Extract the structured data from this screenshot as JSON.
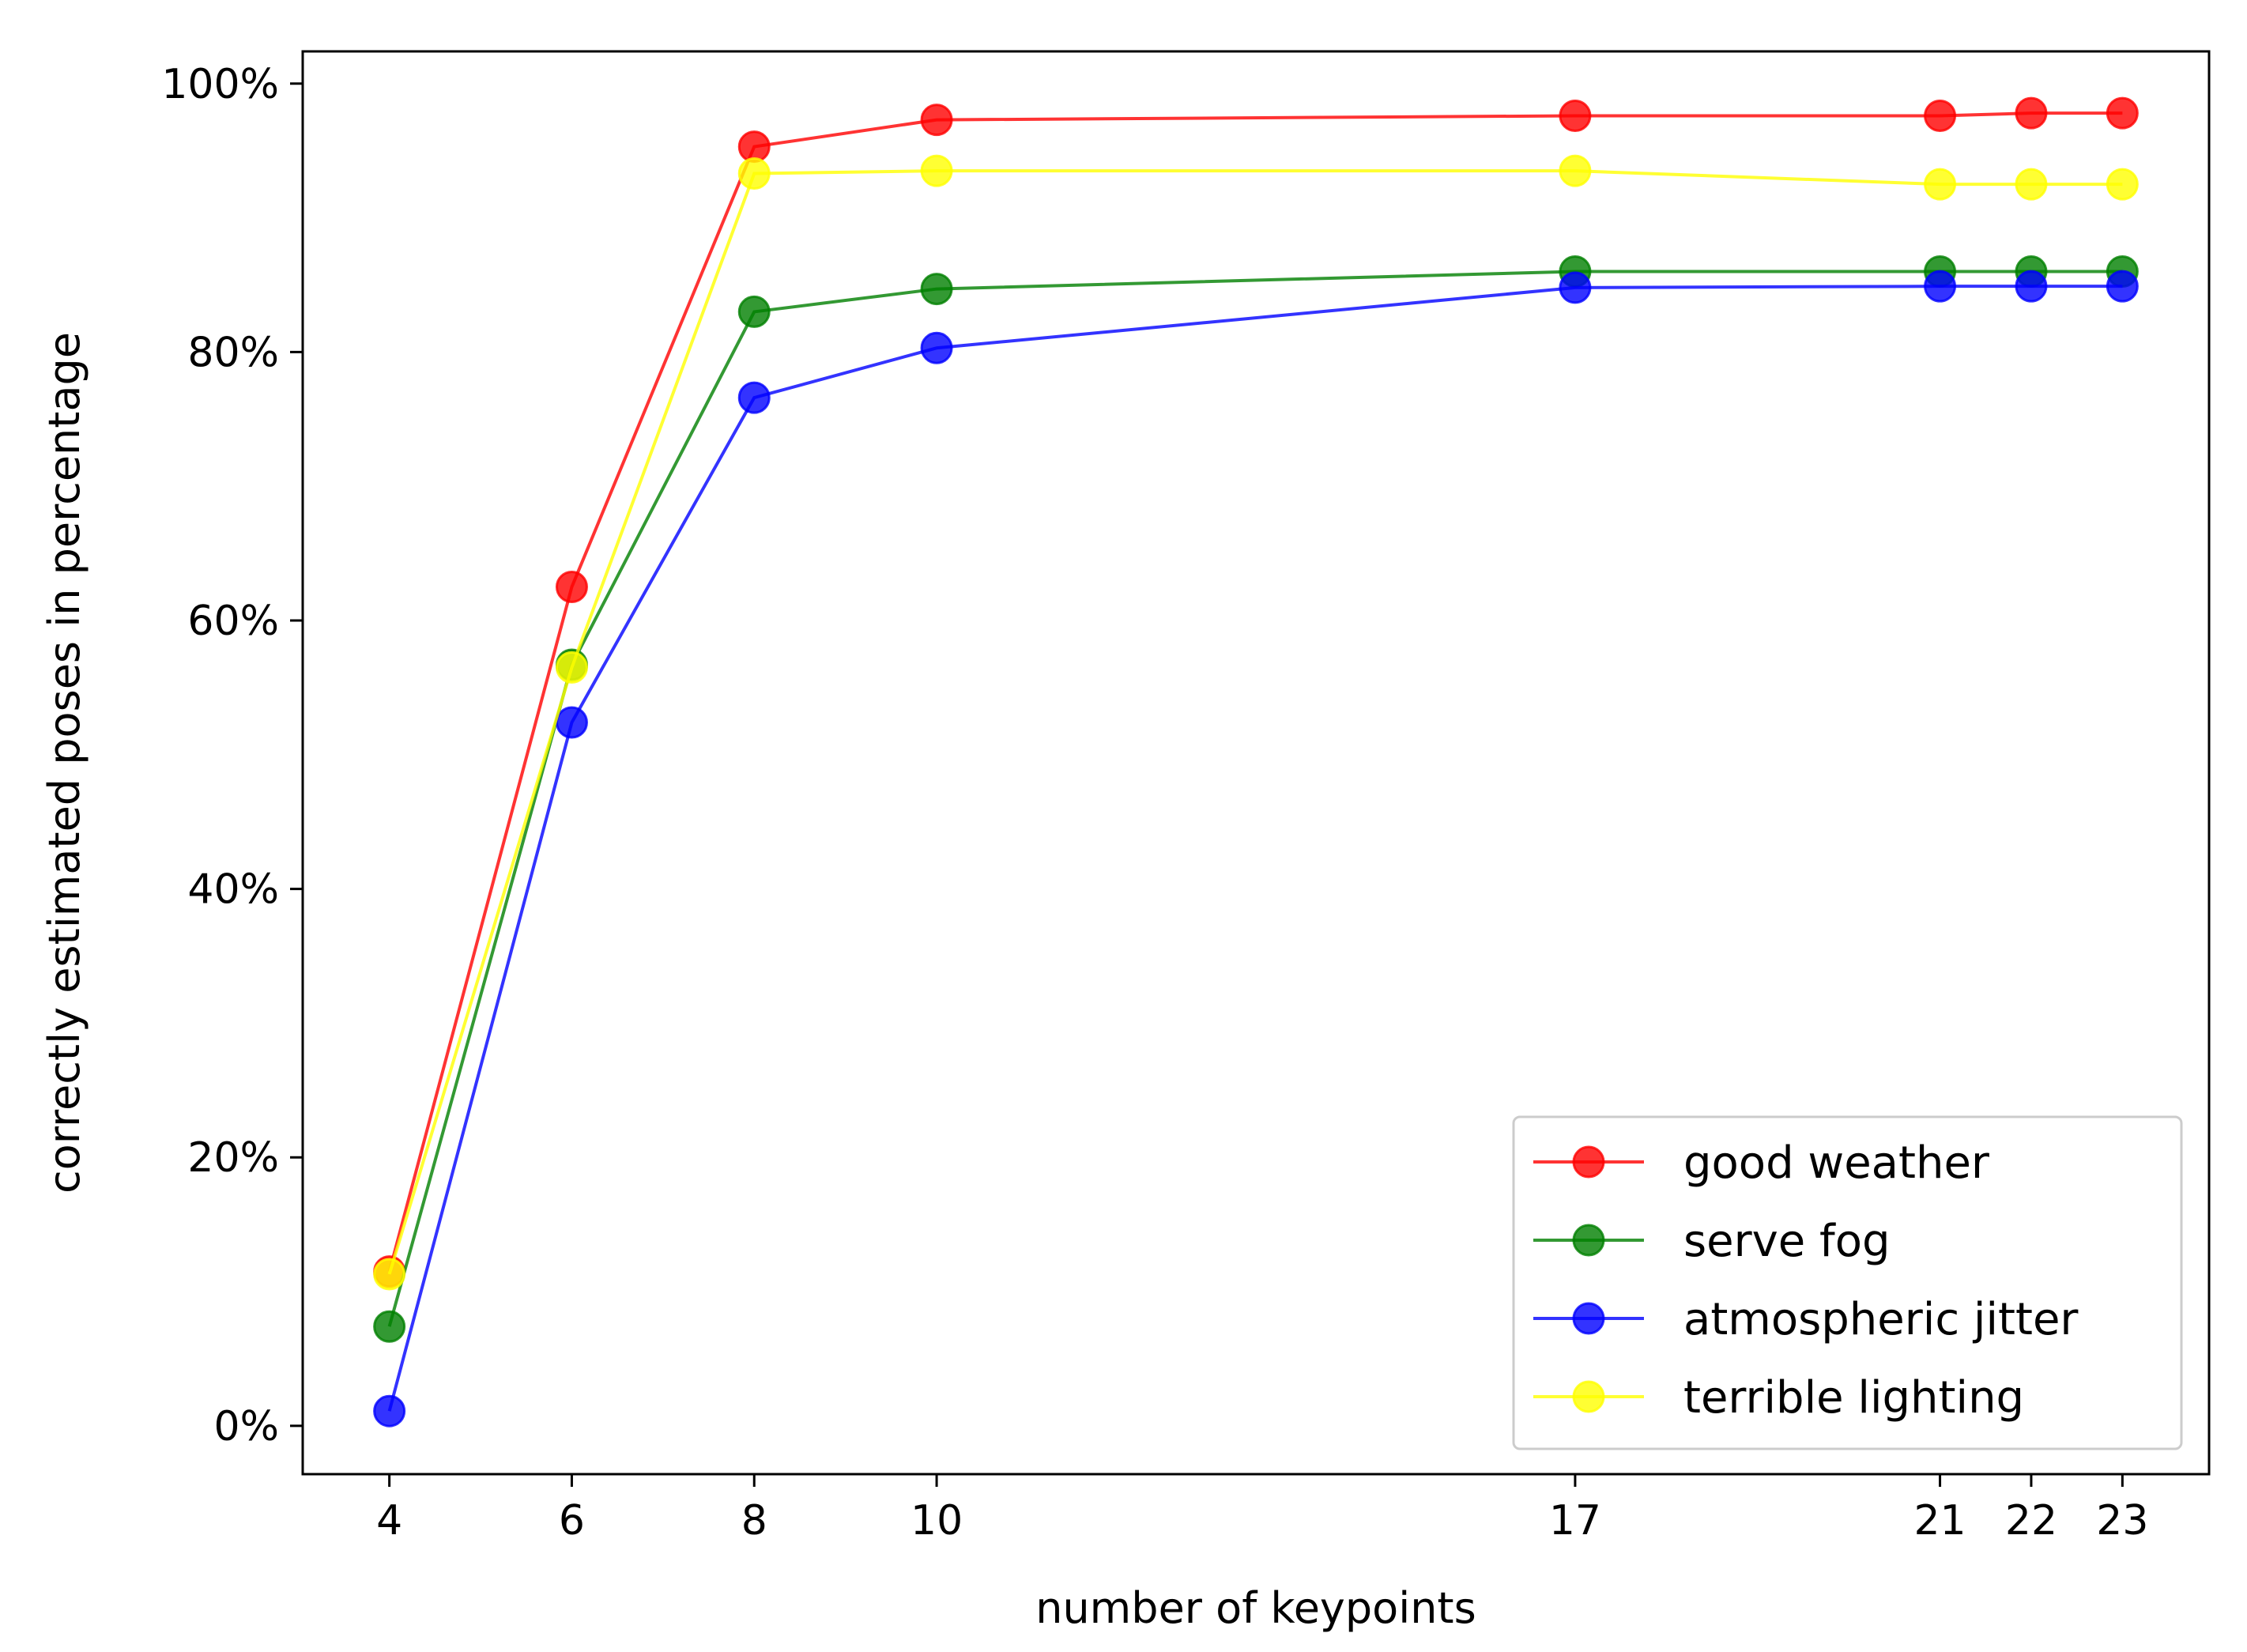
{
  "chart_data": {
    "type": "line",
    "title": "",
    "xlabel": "number of keypoints",
    "ylabel": "correctly estimated poses in percentage",
    "x": [
      4,
      6,
      8,
      10,
      17,
      21,
      22,
      23
    ],
    "xticks": [
      4,
      6,
      8,
      10,
      17,
      21,
      22,
      23
    ],
    "xtick_labels": [
      "4",
      "6",
      "8",
      "10",
      "17",
      "21",
      "22",
      "23"
    ],
    "xlim": [
      3.05,
      23.95
    ],
    "yticks": [
      0,
      20,
      40,
      60,
      80,
      100
    ],
    "ytick_labels": [
      "0%",
      "20%",
      "40%",
      "60%",
      "80%",
      "100%"
    ],
    "ylim": [
      -3.6,
      102.4
    ],
    "grid": false,
    "legend_position": "lower-right",
    "series": [
      {
        "name": "good weather",
        "color": "#ff0000",
        "values": [
          11.5,
          62.5,
          95.3,
          97.3,
          97.6,
          97.6,
          97.8,
          97.8
        ]
      },
      {
        "name": "serve fog",
        "color": "#008000",
        "values": [
          7.4,
          56.7,
          83.0,
          84.7,
          86.0,
          86.0,
          86.0,
          86.0
        ]
      },
      {
        "name": "atmospheric jitter",
        "color": "#0000ff",
        "values": [
          1.1,
          52.4,
          76.6,
          80.3,
          84.8,
          84.9,
          84.9,
          84.9
        ]
      },
      {
        "name": "terrible lighting",
        "color": "#ffff00",
        "values": [
          11.3,
          56.5,
          93.3,
          93.5,
          93.5,
          92.5,
          92.5,
          92.5
        ]
      }
    ]
  }
}
